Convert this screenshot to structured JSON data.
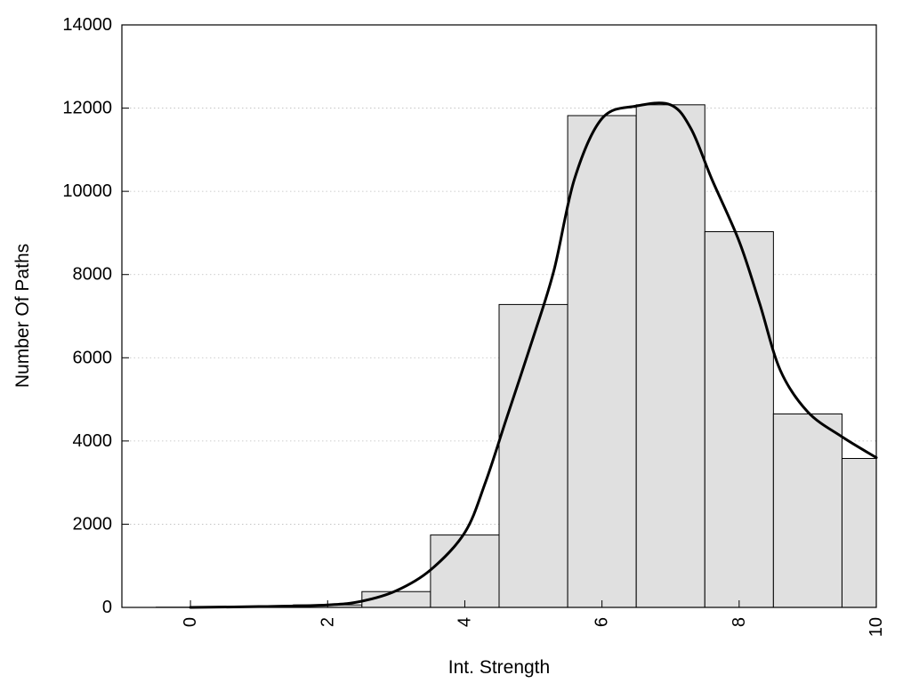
{
  "chart_data": {
    "type": "bar",
    "xlabel": "Int. Strength",
    "ylabel": "Number Of Paths",
    "xlim": [
      -1,
      10
    ],
    "ylim": [
      0,
      14000
    ],
    "x_ticks": [
      0,
      2,
      4,
      6,
      8,
      10
    ],
    "x_tick_labels": [
      "0",
      "2",
      "4",
      "6",
      "8",
      "10"
    ],
    "y_ticks": [
      0,
      2000,
      4000,
      6000,
      8000,
      10000,
      12000,
      14000
    ],
    "y_tick_labels": [
      "0",
      "2000",
      "4000",
      "6000",
      "8000",
      "10000",
      "12000",
      "14000"
    ],
    "grid": "horizontal-dotted",
    "bars": [
      {
        "x": 0,
        "value": 5
      },
      {
        "x": 1,
        "value": 20
      },
      {
        "x": 2,
        "value": 60
      },
      {
        "x": 3,
        "value": 380
      },
      {
        "x": 4,
        "value": 1740
      },
      {
        "x": 5,
        "value": 7280
      },
      {
        "x": 6,
        "value": 11820
      },
      {
        "x": 7,
        "value": 12080
      },
      {
        "x": 8,
        "value": 9030
      },
      {
        "x": 9,
        "value": 4650
      },
      {
        "x": 10,
        "value": 3580
      }
    ],
    "bar_color": "#e0e0e0",
    "curve_color": "#000000",
    "curve": {
      "x": [
        0,
        1,
        2,
        2.5,
        3,
        3.5,
        4,
        4.3,
        4.6,
        5,
        5.3,
        5.6,
        6,
        6.5,
        7,
        7.3,
        7.6,
        8,
        8.3,
        8.6,
        9,
        9.5,
        10
      ],
      "y": [
        0,
        20,
        60,
        150,
        400,
        900,
        1800,
        3000,
        4500,
        6500,
        8100,
        10300,
        11750,
        12050,
        12080,
        11500,
        10300,
        8800,
        7300,
        5700,
        4700,
        4100,
        3600
      ]
    }
  }
}
